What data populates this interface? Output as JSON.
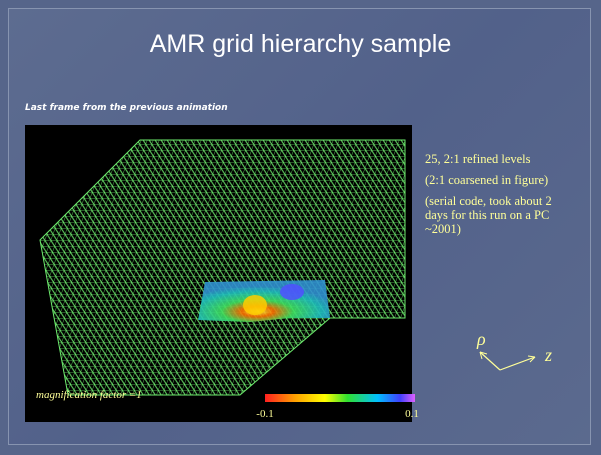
{
  "title": "AMR grid hierarchy sample",
  "subtitle": "Last frame from the previous animation",
  "figure": {
    "caption": "magnification factor =1",
    "colorbar_min": "-0.1",
    "colorbar_max": "0.1",
    "axis_rho": "ρ",
    "axis_z": "z"
  },
  "notes": [
    "25, 2:1 refined levels",
    "(2:1 coarsened in figure)",
    "(serial code, took about 2 days for this run on a PC ~2001)"
  ]
}
